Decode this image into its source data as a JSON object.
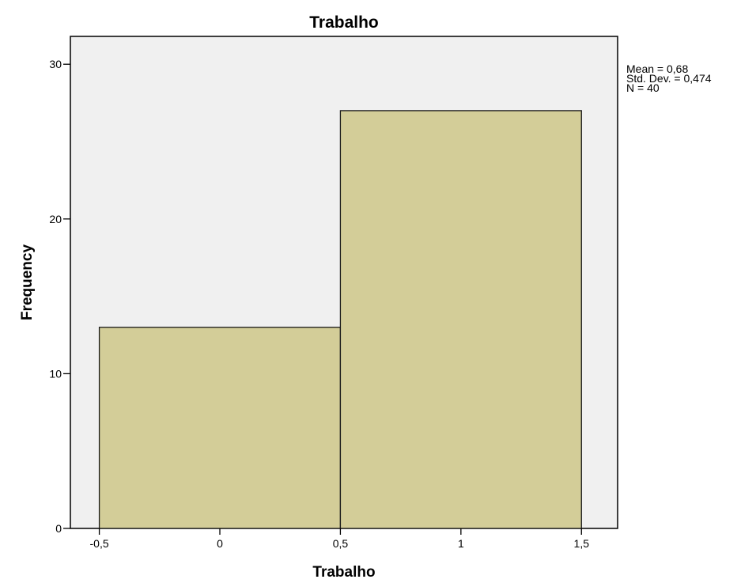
{
  "chart_data": {
    "type": "bar",
    "title": "Trabalho",
    "xlabel": "Trabalho",
    "ylabel": "Frequency",
    "bins": [
      {
        "from": -0.5,
        "to": 0.5,
        "value": 13
      },
      {
        "from": 0.5,
        "to": 1.5,
        "value": 27
      }
    ],
    "xlim": [
      -0.62,
      1.65
    ],
    "ylim": [
      0,
      31.8
    ],
    "x_ticks": [
      {
        "value": -0.5,
        "label": "-0,5"
      },
      {
        "value": 0,
        "label": "0"
      },
      {
        "value": 0.5,
        "label": "0,5"
      },
      {
        "value": 1,
        "label": "1"
      },
      {
        "value": 1.5,
        "label": "1,5"
      }
    ],
    "y_ticks": [
      {
        "value": 0,
        "label": "0"
      },
      {
        "value": 10,
        "label": "10"
      },
      {
        "value": 20,
        "label": "20"
      },
      {
        "value": 30,
        "label": "30"
      }
    ],
    "stats": {
      "mean": "Mean = 0,68",
      "std_dev": "Std. Dev. = 0,474",
      "n": "N = 40"
    },
    "legend": "right",
    "grid": false,
    "colors": {
      "bar_fill": "#d3cd98",
      "bar_stroke": "#1a1a1a",
      "plot_background": "#f0f0f0"
    }
  }
}
